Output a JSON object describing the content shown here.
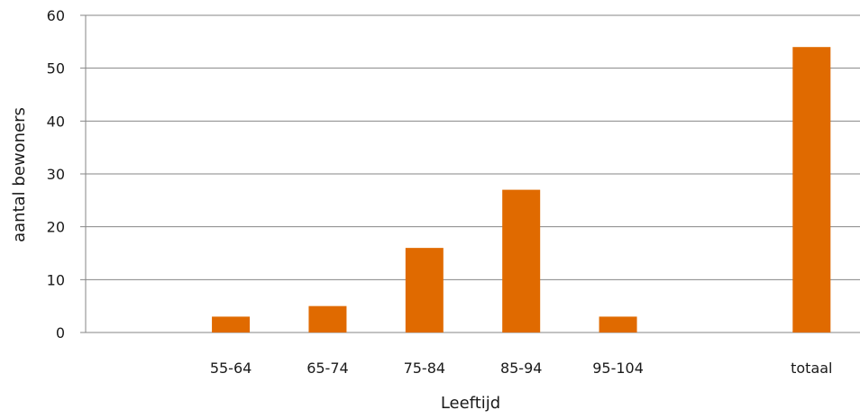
{
  "chart_data": {
    "type": "bar",
    "categories": [
      "",
      "55-64",
      "65-74",
      "75-84",
      "85-94",
      "95-104",
      "",
      "totaal"
    ],
    "values": [
      0,
      3,
      5,
      16,
      27,
      3,
      0,
      54
    ],
    "xlabel": "Leeftijd",
    "ylabel": "aantal bewoners",
    "ylim": [
      0,
      60
    ],
    "yticks": [
      0,
      10,
      20,
      30,
      40,
      50,
      60
    ],
    "grid": true,
    "bar_color": "#e06a00",
    "grid_color": "#868686"
  }
}
